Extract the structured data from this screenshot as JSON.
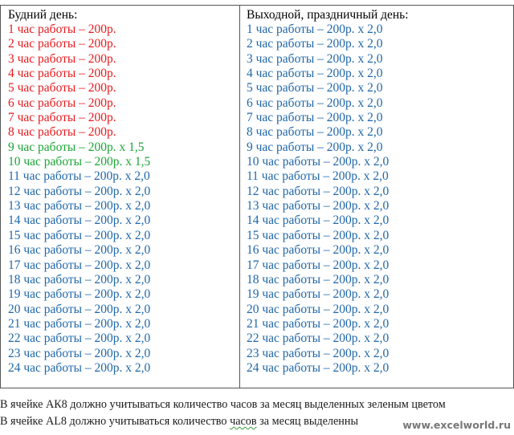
{
  "colors": {
    "red": "#e8191c",
    "green": "#1aa535",
    "blue": "#2067a8"
  },
  "table": {
    "left": {
      "header": "Будний день:",
      "rows": [
        {
          "text": "1 час работы – 200р.",
          "color": "red"
        },
        {
          "text": "2 час работы – 200р.",
          "color": "red"
        },
        {
          "text": "3 час работы – 200р.",
          "color": "red"
        },
        {
          "text": "4 час работы – 200р.",
          "color": "red"
        },
        {
          "text": "5 час работы – 200р.",
          "color": "red"
        },
        {
          "text": "6 час работы – 200р.",
          "color": "red"
        },
        {
          "text": "7 час работы – 200р.",
          "color": "red"
        },
        {
          "text": "8 час работы – 200р.",
          "color": "red"
        },
        {
          "text": "9 час работы – 200р. х 1,5",
          "color": "green"
        },
        {
          "text": "10 час работы – 200р. х 1,5",
          "color": "green"
        },
        {
          "text": "11 час работы – 200р. х 2,0",
          "color": "blue"
        },
        {
          "text": "12 час работы – 200р. х 2,0",
          "color": "blue"
        },
        {
          "text": "13 час работы – 200р. х 2,0",
          "color": "blue"
        },
        {
          "text": "14 час работы – 200р. х 2,0",
          "color": "blue"
        },
        {
          "text": "15 час работы – 200р. х 2,0",
          "color": "blue"
        },
        {
          "text": "16 час работы – 200р. х 2,0",
          "color": "blue"
        },
        {
          "text": "17 час работы – 200р. х 2,0",
          "color": "blue"
        },
        {
          "text": "18 час работы – 200р. х 2,0",
          "color": "blue"
        },
        {
          "text": "19 час работы – 200р. х 2,0",
          "color": "blue"
        },
        {
          "text": "20 час работы – 200р. х 2,0",
          "color": "blue"
        },
        {
          "text": "21 час работы – 200р. х 2,0",
          "color": "blue"
        },
        {
          "text": "22 час работы – 200р. х 2,0",
          "color": "blue"
        },
        {
          "text": "23 час работы – 200р. х 2,0",
          "color": "blue"
        },
        {
          "text": "24 час работы – 200р. х 2,0",
          "color": "blue"
        }
      ]
    },
    "right": {
      "header": "Выходной, праздничный день:",
      "rows": [
        {
          "text": "1 час работы – 200р. х 2,0",
          "color": "blue"
        },
        {
          "text": "2 час работы – 200р. х 2,0",
          "color": "blue"
        },
        {
          "text": "3 час работы – 200р. х 2,0",
          "color": "blue"
        },
        {
          "text": "4 час работы – 200р. х 2,0",
          "color": "blue"
        },
        {
          "text": "5 час работы – 200р. х 2,0",
          "color": "blue"
        },
        {
          "text": "6 час работы – 200р. х 2,0",
          "color": "blue"
        },
        {
          "text": "7 час работы – 200р. х 2,0",
          "color": "blue"
        },
        {
          "text": "8 час работы – 200р. х 2,0",
          "color": "blue"
        },
        {
          "text": "9 час работы – 200р. х 2,0",
          "color": "blue"
        },
        {
          "text": "10 час работы – 200р. х 2,0",
          "color": "blue"
        },
        {
          "text": "11 час работы – 200р. х 2,0",
          "color": "blue"
        },
        {
          "text": "12 час работы – 200р. х 2,0",
          "color": "blue"
        },
        {
          "text": "13 час работы – 200р. х 2,0",
          "color": "blue"
        },
        {
          "text": "14 час работы – 200р. х 2,0",
          "color": "blue"
        },
        {
          "text": "15 час работы – 200р. х 2,0",
          "color": "blue"
        },
        {
          "text": "16 час работы – 200р. х 2,0",
          "color": "blue"
        },
        {
          "text": "17 час работы – 200р. х 2,0",
          "color": "blue"
        },
        {
          "text": "18 час работы – 200р. х 2,0",
          "color": "blue"
        },
        {
          "text": "19 час работы – 200р. х 2,0",
          "color": "blue"
        },
        {
          "text": "20 час работы – 200р. х 2,0",
          "color": "blue"
        },
        {
          "text": "21 час работы – 200р. х 2,0",
          "color": "blue"
        },
        {
          "text": "22 час работы – 200р. х 2,0",
          "color": "blue"
        },
        {
          "text": "23 час работы – 200р. х 2,0",
          "color": "blue"
        },
        {
          "text": "24 час работы – 200р. х 2,0",
          "color": "blue"
        }
      ]
    }
  },
  "notes": {
    "line1": "В ячейке АК8 должно учитываться количество часов за месяц выделенных зеленым цветом",
    "line2_before": "В ячейке AL8 должно учитываться количество ",
    "line2_underlined": "часов",
    "line2_after": " за месяц выделенны"
  },
  "watermark": "www.excelworld.ru"
}
